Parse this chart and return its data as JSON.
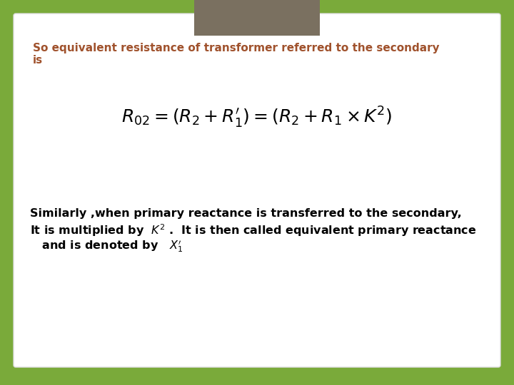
{
  "bg_color": "#7aaa3a",
  "card_color": "#ffffff",
  "header_rect_color": "#7a7060",
  "title_text_line1": "So equivalent resistance of transformer referred to the secondary",
  "title_text_line2": "is",
  "title_color": "#a0522d",
  "formula_fontsize": 18,
  "body_text1": "Similarly ,when primary reactance is transferred to the secondary,",
  "body_text2": "It is multiplied by  $K^2$ .  It is then called equivalent primary reactance",
  "body_text3": "   and is denoted by   $X_1^{\\prime}$",
  "body_color": "#000000",
  "body_fontsize": 11.5,
  "title_fontsize": 11
}
